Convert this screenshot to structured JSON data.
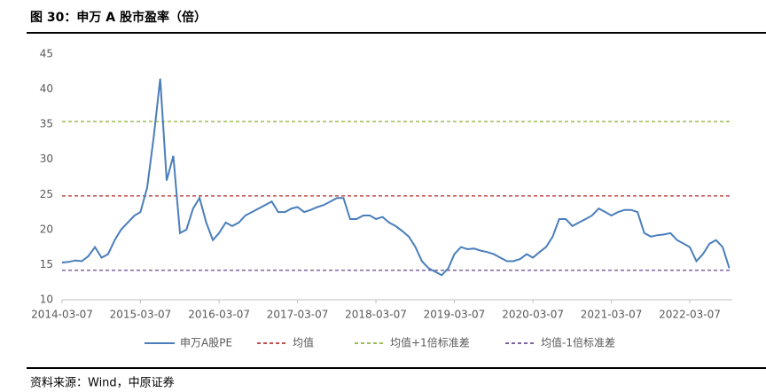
{
  "header": {
    "title": "图 30：申万 A 股市盈率（倍）"
  },
  "chart_data": {
    "type": "line",
    "x": [
      "2014-03-07",
      "2014-04-07",
      "2014-05-07",
      "2014-06-07",
      "2014-07-07",
      "2014-08-07",
      "2014-09-07",
      "2014-10-07",
      "2014-11-07",
      "2014-12-07",
      "2015-01-07",
      "2015-02-07",
      "2015-03-07",
      "2015-04-07",
      "2015-05-07",
      "2015-06-07",
      "2015-07-07",
      "2015-08-07",
      "2015-09-07",
      "2015-10-07",
      "2015-11-07",
      "2015-12-07",
      "2016-01-07",
      "2016-02-07",
      "2016-03-07",
      "2016-04-07",
      "2016-05-07",
      "2016-06-07",
      "2016-07-07",
      "2016-08-07",
      "2016-09-07",
      "2016-10-07",
      "2016-11-07",
      "2016-12-07",
      "2017-01-07",
      "2017-02-07",
      "2017-03-07",
      "2017-04-07",
      "2017-05-07",
      "2017-06-07",
      "2017-07-07",
      "2017-08-07",
      "2017-09-07",
      "2017-10-07",
      "2017-11-07",
      "2017-12-07",
      "2018-01-07",
      "2018-02-07",
      "2018-03-07",
      "2018-04-07",
      "2018-05-07",
      "2018-06-07",
      "2018-07-07",
      "2018-08-07",
      "2018-09-07",
      "2018-10-07",
      "2018-11-07",
      "2018-12-07",
      "2019-01-07",
      "2019-02-07",
      "2019-03-07",
      "2019-04-07",
      "2019-05-07",
      "2019-06-07",
      "2019-07-07",
      "2019-08-07",
      "2019-09-07",
      "2019-10-07",
      "2019-11-07",
      "2019-12-07",
      "2020-01-07",
      "2020-02-07",
      "2020-03-07",
      "2020-04-07",
      "2020-05-07",
      "2020-06-07",
      "2020-07-07",
      "2020-08-07",
      "2020-09-07",
      "2020-10-07",
      "2020-11-07",
      "2020-12-07",
      "2021-01-07",
      "2021-02-07",
      "2021-03-07",
      "2021-04-07",
      "2021-05-07",
      "2021-06-07",
      "2021-07-07",
      "2021-08-07",
      "2021-09-07",
      "2021-10-07",
      "2021-11-07",
      "2021-12-07",
      "2022-01-07",
      "2022-02-07",
      "2022-03-07",
      "2022-04-07",
      "2022-05-07",
      "2022-06-07",
      "2022-07-07",
      "2022-08-07",
      "2022-09-07"
    ],
    "series": [
      {
        "name": "申万A股PE",
        "color": "#4a7ebb",
        "values": [
          15.3,
          15.4,
          15.6,
          15.5,
          16.2,
          17.5,
          16.0,
          16.5,
          18.5,
          20.0,
          21.0,
          22.0,
          22.5,
          26.0,
          33.0,
          41.5,
          27.0,
          30.5,
          19.5,
          20.0,
          23.0,
          24.5,
          21.0,
          18.5,
          19.5,
          21.0,
          20.5,
          21.0,
          22.0,
          22.5,
          23.0,
          23.5,
          24.0,
          22.5,
          22.5,
          23.0,
          23.2,
          22.5,
          22.8,
          23.2,
          23.5,
          24.0,
          24.5,
          24.5,
          21.5,
          21.5,
          22.0,
          22.0,
          21.5,
          21.8,
          21.0,
          20.5,
          19.8,
          19.0,
          17.5,
          15.5,
          14.5,
          14.0,
          13.5,
          14.5,
          16.5,
          17.5,
          17.2,
          17.3,
          17.0,
          16.8,
          16.5,
          16.0,
          15.5,
          15.5,
          15.8,
          16.5,
          16.0,
          16.8,
          17.5,
          19.0,
          21.5,
          21.5,
          20.5,
          21.0,
          21.5,
          22.0,
          23.0,
          22.5,
          22.0,
          22.5,
          22.8,
          22.8,
          22.5,
          19.5,
          19.0,
          19.2,
          19.3,
          19.5,
          18.5,
          18.0,
          17.5,
          15.5,
          16.5,
          18.0,
          18.5,
          17.5,
          14.5
        ]
      }
    ],
    "reference_lines": [
      {
        "name": "均值",
        "color": "#c0504d",
        "value": 24.8
      },
      {
        "name": "均值+1倍标准差",
        "color": "#9bbb59",
        "value": 35.4
      },
      {
        "name": "均值-1倍标准差",
        "color": "#8064a2",
        "value": 14.2
      }
    ],
    "xlim": [
      "2014-03-07",
      "2022-09-21"
    ],
    "xticks": [
      "2014-03-07",
      "2015-03-07",
      "2016-03-07",
      "2017-03-07",
      "2018-03-07",
      "2019-03-07",
      "2020-03-07",
      "2021-03-07",
      "2022-03-07"
    ],
    "ylim": [
      10,
      45
    ],
    "yticks": [
      10,
      15,
      20,
      25,
      30,
      35,
      40,
      45
    ]
  },
  "footer": {
    "source": "资料来源：Wind，中原证券"
  }
}
